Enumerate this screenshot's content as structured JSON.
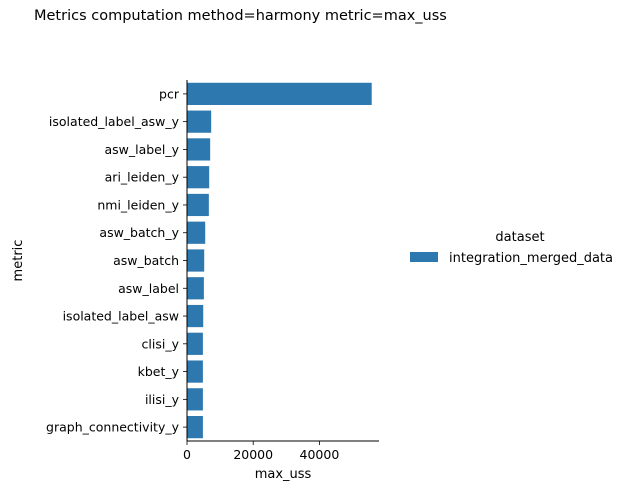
{
  "chart_data": {
    "type": "bar",
    "orientation": "horizontal",
    "title": "Metrics computation method=harmony metric=max_uss",
    "xlabel": "max_uss",
    "ylabel": "metric",
    "categories": [
      "pcr",
      "isolated_label_asw_y",
      "asw_label_y",
      "ari_leiden_y",
      "nmi_leiden_y",
      "asw_batch_y",
      "asw_batch",
      "asw_label",
      "isolated_label_asw",
      "clisi_y",
      "kbet_y",
      "ilisi_y",
      "graph_connectivity_y"
    ],
    "series": [
      {
        "name": "integration_merged_data",
        "color": "#2e78b0",
        "values": [
          55800,
          7300,
          7000,
          6700,
          6600,
          5500,
          5200,
          5100,
          4900,
          4800,
          4800,
          4800,
          4800
        ]
      }
    ],
    "xlim": [
      0,
      58000
    ],
    "xticks": [
      0,
      20000,
      40000
    ],
    "xtick_labels": [
      "0",
      "20000",
      "40000"
    ],
    "grid": false,
    "legend": {
      "title": "dataset",
      "placement": "right"
    }
  }
}
